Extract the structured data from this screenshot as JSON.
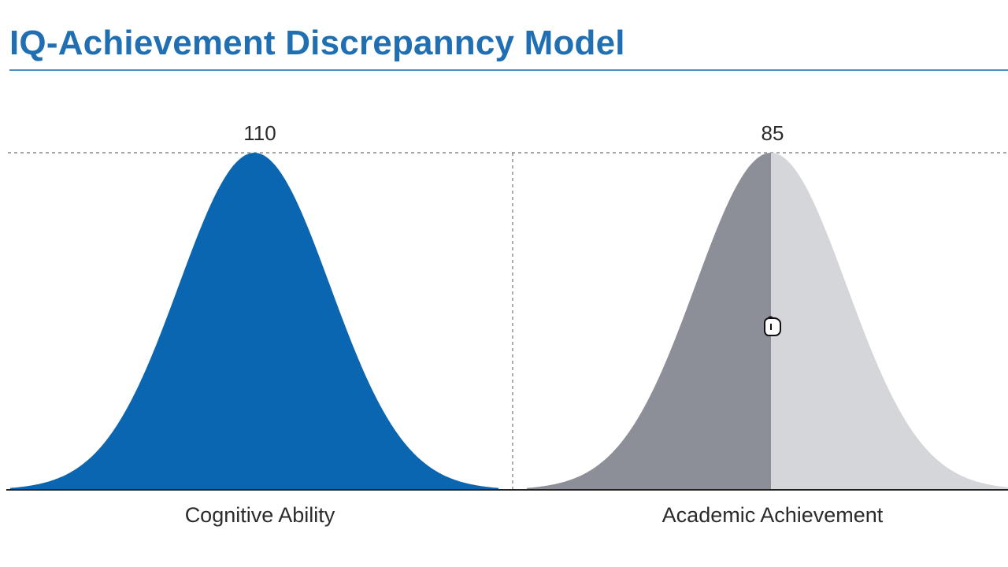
{
  "title": "IQ-Achievement Discrepanncy Model",
  "colors": {
    "title": "#1f6fb2",
    "ability_fill": "#0a66b0",
    "achievement_left_fill": "#8c8f97",
    "achievement_right_fill": "#d5d6da",
    "axis": "#222222",
    "guide": "#777777"
  },
  "chart_data": {
    "type": "area",
    "title": "IQ-Achievement Discrepanncy Model",
    "xlabel": "",
    "ylabel": "",
    "grid": false,
    "series": [
      {
        "name": "Cognitive Ability",
        "peak_label": "110",
        "peak_value": 110,
        "color": "#0a66b0"
      },
      {
        "name": "Academic Achievement",
        "peak_label": "85",
        "peak_value": 85,
        "color": "#8c8f97",
        "split_color": "#d5d6da",
        "split_at_peak": true
      }
    ],
    "annotations": [
      {
        "type": "dashed-line",
        "orientation": "horizontal",
        "at": "peak"
      },
      {
        "type": "dashed-line",
        "orientation": "vertical",
        "at": "between-panels"
      }
    ]
  },
  "cursor_icon": "hand-cursor-icon"
}
